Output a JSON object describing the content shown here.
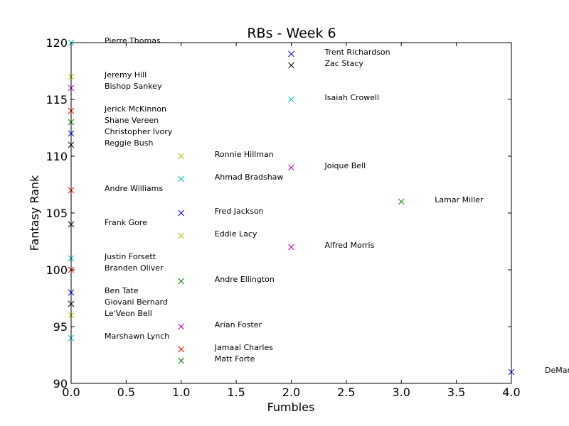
{
  "chart_data": {
    "type": "scatter",
    "title": "RBs - Week 6",
    "xlabel": "Fumbles",
    "ylabel": "Fantasy Rank",
    "xlim": [
      0.0,
      4.0
    ],
    "ylim": [
      90,
      120
    ],
    "xticks": [
      "0.0",
      "0.5",
      "1.0",
      "1.5",
      "2.0",
      "2.5",
      "3.0",
      "3.5",
      "4.0"
    ],
    "yticks": [
      "90",
      "95",
      "100",
      "105",
      "110",
      "115",
      "120"
    ],
    "grid": false,
    "marker": "x",
    "points": [
      {
        "label": "Pierre Thomas",
        "x": 0,
        "y": 120,
        "color": "#00bfbf"
      },
      {
        "label": "Jeremy Hill",
        "x": 0,
        "y": 117,
        "color": "#bfbf00"
      },
      {
        "label": "Bishop Sankey",
        "x": 0,
        "y": 116,
        "color": "#bf00bf"
      },
      {
        "label": "Jerick McKinnon",
        "x": 0,
        "y": 114,
        "color": "#ff0000"
      },
      {
        "label": "Shane Vereen",
        "x": 0,
        "y": 113,
        "color": "#008000"
      },
      {
        "label": "Christopher Ivory",
        "x": 0,
        "y": 112,
        "color": "#0000ff"
      },
      {
        "label": "Reggie Bush",
        "x": 0,
        "y": 111,
        "color": "#000000"
      },
      {
        "label": "Andre Williams",
        "x": 0,
        "y": 107,
        "color": "#ff0000"
      },
      {
        "label": "Frank Gore",
        "x": 0,
        "y": 104,
        "color": "#000000"
      },
      {
        "label": "Justin Forsett",
        "x": 0,
        "y": 101,
        "color": "#00bfbf"
      },
      {
        "label": "Branden Oliver",
        "x": 0,
        "y": 100,
        "color": "#ff0000"
      },
      {
        "label": "Ben Tate",
        "x": 0,
        "y": 98,
        "color": "#0000ff"
      },
      {
        "label": "Giovani Bernard",
        "x": 0,
        "y": 97,
        "color": "#000000"
      },
      {
        "label": "Le'Veon Bell",
        "x": 0,
        "y": 96,
        "color": "#bfbf00"
      },
      {
        "label": "Marshawn Lynch",
        "x": 0,
        "y": 94,
        "color": "#00bfbf"
      },
      {
        "label": "Ronnie Hillman",
        "x": 1,
        "y": 110,
        "color": "#bfbf00"
      },
      {
        "label": "Ahmad Bradshaw",
        "x": 1,
        "y": 108,
        "color": "#00bfbf"
      },
      {
        "label": "Fred Jackson",
        "x": 1,
        "y": 105,
        "color": "#0000ff"
      },
      {
        "label": "Eddie Lacy",
        "x": 1,
        "y": 103,
        "color": "#bfbf00"
      },
      {
        "label": "Andre Ellington",
        "x": 1,
        "y": 99,
        "color": "#008000"
      },
      {
        "label": "Arian Foster",
        "x": 1,
        "y": 95,
        "color": "#bf00bf"
      },
      {
        "label": "Jamaal Charles",
        "x": 1,
        "y": 93,
        "color": "#ff0000"
      },
      {
        "label": "Matt Forte",
        "x": 1,
        "y": 92,
        "color": "#008000"
      },
      {
        "label": "Trent Richardson",
        "x": 2,
        "y": 119,
        "color": "#0000ff"
      },
      {
        "label": "Zac Stacy",
        "x": 2,
        "y": 118,
        "color": "#000000"
      },
      {
        "label": "Isaiah Crowell",
        "x": 2,
        "y": 115,
        "color": "#00bfbf"
      },
      {
        "label": "Joique Bell",
        "x": 2,
        "y": 109,
        "color": "#bf00bf"
      },
      {
        "label": "Alfred Morris",
        "x": 2,
        "y": 102,
        "color": "#bf00bf"
      },
      {
        "label": "Lamar Miller",
        "x": 3,
        "y": 106,
        "color": "#008000"
      },
      {
        "label": "DeMar",
        "x": 4,
        "y": 91,
        "color": "#0000ff"
      }
    ]
  }
}
